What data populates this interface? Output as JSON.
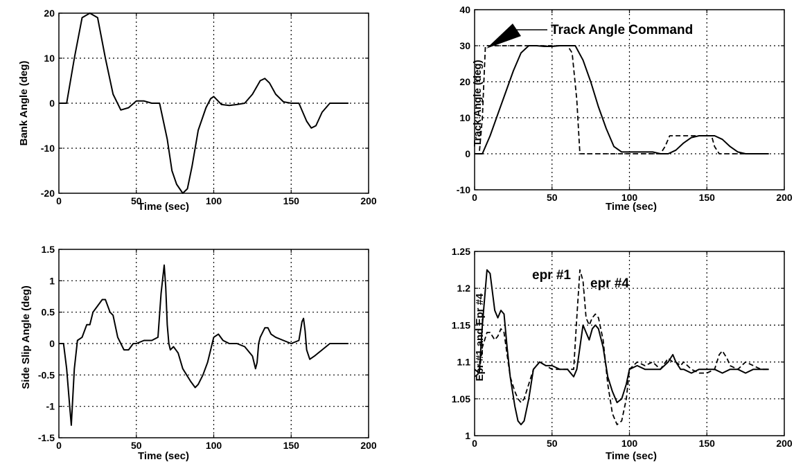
{
  "chart_data": [
    {
      "type": "line",
      "xlabel": "Time (sec)",
      "ylabel": "Bank Angle (deg)",
      "xlim": [
        0,
        200
      ],
      "ylim": [
        -20,
        20
      ],
      "xticks": [
        "0",
        "50",
        "100",
        "150",
        "200"
      ],
      "yticks": [
        "-20",
        "-10",
        "0",
        "10",
        "20"
      ],
      "grid": true,
      "series": [
        {
          "style": "solid",
          "x": [
            0,
            5,
            10,
            15,
            20,
            25,
            30,
            35,
            40,
            45,
            50,
            55,
            60,
            65,
            70,
            73,
            76,
            80,
            83,
            86,
            90,
            95,
            98,
            100,
            105,
            110,
            115,
            120,
            125,
            130,
            133,
            136,
            140,
            145,
            150,
            155,
            160,
            163,
            166,
            170,
            175,
            180,
            187
          ],
          "y": [
            0,
            0,
            10,
            19,
            20,
            19,
            10,
            2,
            -1.5,
            -1,
            0.5,
            0.5,
            0,
            0,
            -8,
            -15,
            -18,
            -20,
            -19,
            -14,
            -6,
            -1,
            1,
            1.5,
            -0.3,
            -0.5,
            -0.3,
            0,
            2,
            5,
            5.5,
            4.5,
            2,
            0.3,
            0,
            0,
            -4,
            -5.5,
            -5,
            -2,
            0,
            0,
            0
          ]
        }
      ]
    },
    {
      "type": "line",
      "xlabel": "Time (sec)",
      "ylabel": "Track Angle (deg)",
      "xlim": [
        0,
        200
      ],
      "ylim": [
        -10,
        40
      ],
      "xticks": [
        "0",
        "50",
        "100",
        "150",
        "200"
      ],
      "yticks": [
        "-10",
        "0",
        "10",
        "20",
        "30",
        "40"
      ],
      "grid": true,
      "annotations": [
        "Track Angle Command"
      ],
      "series": [
        {
          "style": "solid",
          "x": [
            0,
            5,
            10,
            15,
            20,
            25,
            30,
            35,
            40,
            45,
            50,
            55,
            60,
            65,
            70,
            75,
            80,
            85,
            90,
            95,
            100,
            105,
            110,
            115,
            120,
            125,
            130,
            135,
            140,
            145,
            150,
            155,
            160,
            165,
            170,
            175,
            180,
            190
          ],
          "y": [
            0,
            0,
            5,
            11,
            17,
            23,
            28,
            30,
            30,
            29.8,
            29.8,
            30,
            30,
            30,
            26,
            20,
            13,
            7,
            2,
            0.5,
            0.5,
            0.5,
            0.5,
            0.5,
            0,
            0,
            1,
            3,
            4.5,
            5,
            5,
            5,
            4,
            2,
            0.5,
            0,
            0,
            0
          ]
        },
        {
          "style": "dashed",
          "x": [
            0,
            3,
            5,
            7,
            20,
            40,
            60,
            63,
            66,
            68,
            70,
            100,
            120,
            123,
            126,
            130,
            150,
            153,
            155,
            158,
            160,
            190
          ],
          "y": [
            0,
            0,
            10,
            30,
            30,
            30,
            30,
            28,
            15,
            0,
            0,
            0,
            0,
            2,
            5,
            5,
            5,
            5,
            2,
            0,
            0,
            0
          ]
        }
      ]
    },
    {
      "type": "line",
      "xlabel": "Time (sec)",
      "ylabel": "Side Slip Angle (deg)",
      "xlim": [
        0,
        200
      ],
      "ylim": [
        -1.5,
        1.5
      ],
      "xticks": [
        "0",
        "50",
        "100",
        "150",
        "200"
      ],
      "yticks": [
        "-1.5",
        "-1",
        "-0.5",
        "0",
        "0.5",
        "1",
        "1.5"
      ],
      "grid": true,
      "series": [
        {
          "style": "solid",
          "x": [
            0,
            3,
            5,
            7,
            8,
            10,
            12,
            15,
            18,
            20,
            22,
            25,
            28,
            30,
            33,
            35,
            38,
            42,
            45,
            48,
            50,
            55,
            60,
            64,
            66,
            68,
            69,
            70,
            71,
            72,
            74,
            77,
            80,
            85,
            88,
            90,
            93,
            96,
            100,
            103,
            106,
            110,
            115,
            120,
            125,
            127,
            128,
            129,
            130,
            133,
            135,
            137,
            140,
            145,
            150,
            155,
            157,
            158,
            159,
            160,
            162,
            165,
            170,
            175,
            180,
            187
          ],
          "y": [
            0,
            0,
            -0.4,
            -1.0,
            -1.3,
            -0.4,
            0.05,
            0.1,
            0.3,
            0.3,
            0.5,
            0.6,
            0.7,
            0.7,
            0.5,
            0.45,
            0.1,
            -0.1,
            -0.1,
            0,
            0,
            0.05,
            0.05,
            0.1,
            0.8,
            1.25,
            0.9,
            0.3,
            0,
            -0.1,
            -0.05,
            -0.15,
            -0.4,
            -0.6,
            -0.7,
            -0.65,
            -0.5,
            -0.3,
            0.1,
            0.15,
            0.05,
            0,
            0,
            -0.05,
            -0.2,
            -0.4,
            -0.3,
            0,
            0.1,
            0.25,
            0.25,
            0.15,
            0.1,
            0.05,
            0,
            0.05,
            0.35,
            0.4,
            0.2,
            -0.1,
            -0.25,
            -0.2,
            -0.1,
            0,
            0,
            0
          ]
        }
      ]
    },
    {
      "type": "line",
      "xlabel": "Time (sec)",
      "ylabel": "Epr #1 and Epr #4",
      "xlim": [
        0,
        200
      ],
      "ylim": [
        1,
        1.25
      ],
      "xticks": [
        "0",
        "50",
        "100",
        "150",
        "200"
      ],
      "yticks": [
        "1",
        "1.05",
        "1.1",
        "1.15",
        "1.2",
        "1.25"
      ],
      "grid": true,
      "annotations": [
        "epr #1",
        "epr #4"
      ],
      "series": [
        {
          "name": "epr #1",
          "style": "solid",
          "x": [
            0,
            3,
            5,
            8,
            10,
            13,
            15,
            17,
            19,
            21,
            23,
            26,
            28,
            30,
            32,
            35,
            38,
            42,
            46,
            50,
            55,
            60,
            64,
            66,
            68,
            70,
            72,
            74,
            76,
            78,
            80,
            83,
            86,
            89,
            92,
            95,
            98,
            100,
            105,
            110,
            115,
            120,
            125,
            128,
            130,
            133,
            135,
            140,
            145,
            150,
            155,
            160,
            165,
            170,
            175,
            180,
            185,
            190
          ],
          "y": [
            1.09,
            1.085,
            1.15,
            1.225,
            1.22,
            1.17,
            1.16,
            1.17,
            1.165,
            1.12,
            1.08,
            1.04,
            1.02,
            1.015,
            1.02,
            1.05,
            1.09,
            1.1,
            1.095,
            1.095,
            1.09,
            1.09,
            1.08,
            1.09,
            1.12,
            1.15,
            1.14,
            1.13,
            1.145,
            1.15,
            1.145,
            1.12,
            1.08,
            1.06,
            1.045,
            1.05,
            1.07,
            1.09,
            1.095,
            1.09,
            1.09,
            1.09,
            1.1,
            1.11,
            1.1,
            1.09,
            1.09,
            1.085,
            1.09,
            1.09,
            1.09,
            1.085,
            1.09,
            1.09,
            1.085,
            1.09,
            1.09,
            1.09
          ]
        },
        {
          "name": "epr #4",
          "style": "dashed",
          "x": [
            0,
            3,
            5,
            8,
            10,
            13,
            15,
            17,
            19,
            21,
            23,
            26,
            28,
            30,
            32,
            35,
            38,
            42,
            46,
            50,
            55,
            60,
            64,
            66,
            68,
            70,
            72,
            74,
            76,
            78,
            80,
            83,
            86,
            89,
            92,
            95,
            98,
            100,
            105,
            110,
            115,
            120,
            125,
            128,
            130,
            133,
            135,
            140,
            145,
            150,
            155,
            158,
            160,
            163,
            165,
            170,
            175,
            180,
            185,
            190
          ],
          "y": [
            1.08,
            1.085,
            1.12,
            1.14,
            1.14,
            1.13,
            1.135,
            1.145,
            1.14,
            1.11,
            1.08,
            1.06,
            1.05,
            1.045,
            1.05,
            1.07,
            1.09,
            1.1,
            1.095,
            1.09,
            1.09,
            1.09,
            1.09,
            1.16,
            1.225,
            1.21,
            1.16,
            1.15,
            1.16,
            1.165,
            1.16,
            1.13,
            1.07,
            1.03,
            1.015,
            1.02,
            1.05,
            1.09,
            1.1,
            1.095,
            1.1,
            1.09,
            1.105,
            1.1,
            1.1,
            1.095,
            1.1,
            1.09,
            1.085,
            1.085,
            1.09,
            1.11,
            1.115,
            1.105,
            1.095,
            1.09,
            1.1,
            1.095,
            1.09,
            1.09
          ]
        }
      ]
    }
  ]
}
